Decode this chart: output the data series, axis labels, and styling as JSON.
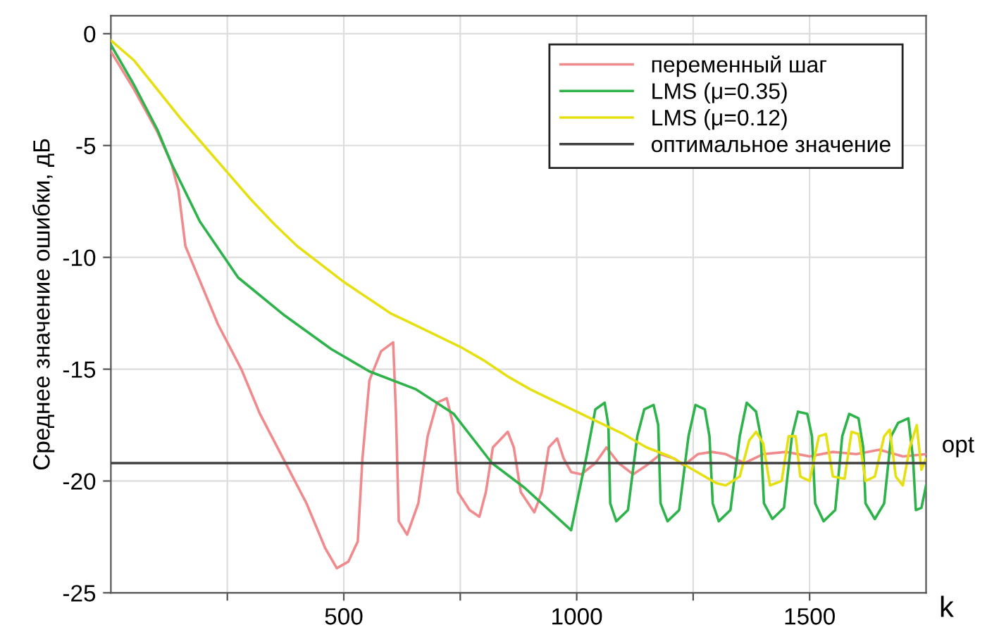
{
  "chart_data": {
    "type": "line",
    "ylabel": "Среднее значение ошибки, дБ",
    "xlabel": "k",
    "xlim": [
      0,
      1750
    ],
    "xticks": [
      {
        "value": 250,
        "label": null
      },
      500,
      {
        "value": 750,
        "label": null
      },
      1000,
      {
        "value": 1250,
        "label": null
      },
      1500
    ],
    "ylim": [
      -25,
      0.8
    ],
    "yticks": [
      -25,
      -20,
      -15,
      -10,
      -5,
      0
    ],
    "grid": true,
    "legend": "top right",
    "line_style": "solid",
    "marker": "none",
    "series": [
      {
        "name": "переменный шаг",
        "color": "#f08a8c",
        "x": [
          0,
          50,
          100,
          130,
          145,
          160,
          190,
          230,
          280,
          320,
          370,
          420,
          460,
          485,
          510,
          530,
          540,
          555,
          580,
          606,
          612,
          618,
          636,
          660,
          680,
          700,
          721,
          735,
          745,
          770,
          791,
          805,
          820,
          852,
          865,
          880,
          909,
          925,
          940,
          958,
          972,
          988,
          1010,
          1040,
          1064,
          1090,
          1121,
          1150,
          1180,
          1210,
          1230,
          1260,
          1290,
          1320,
          1360,
          1400,
          1450,
          1500,
          1550,
          1600,
          1650,
          1700,
          1750
        ],
        "values": [
          -0.8,
          -2.5,
          -4.4,
          -5.8,
          -7,
          -9.5,
          -11,
          -13,
          -15,
          -17,
          -19,
          -21,
          -23,
          -23.9,
          -23.6,
          -22.7,
          -19,
          -15.5,
          -14.2,
          -13.8,
          -17,
          -21.8,
          -22.4,
          -21,
          -18,
          -16.5,
          -16.3,
          -17.5,
          -20.5,
          -21.3,
          -21.6,
          -20.5,
          -18.5,
          -17.8,
          -18.5,
          -20.5,
          -21.4,
          -20.5,
          -18.5,
          -18.1,
          -19,
          -19.6,
          -19.7,
          -19.2,
          -18.5,
          -19.2,
          -19.7,
          -19.3,
          -18.8,
          -19,
          -19.3,
          -18.8,
          -18.7,
          -18.8,
          -19.2,
          -18.8,
          -18.7,
          -18.9,
          -18.7,
          -18.8,
          -18.6,
          -18.9,
          -18.8
        ]
      },
      {
        "name": "LMS (μ=0.35)",
        "color": "#2db34a",
        "x": [
          0,
          50,
          100,
          130,
          191,
          273,
          373,
          473,
          555,
          655,
          736,
          818,
          888,
          988,
          1020,
          1040,
          1060,
          1068,
          1072,
          1085,
          1110,
          1130,
          1145,
          1165,
          1175,
          1180,
          1195,
          1220,
          1240,
          1255,
          1275,
          1285,
          1292,
          1305,
          1330,
          1350,
          1365,
          1385,
          1395,
          1402,
          1420,
          1445,
          1462,
          1475,
          1495,
          1505,
          1512,
          1530,
          1555,
          1570,
          1585,
          1605,
          1615,
          1620,
          1640,
          1660,
          1675,
          1690,
          1712,
          1722,
          1728,
          1740,
          1750
        ],
        "values": [
          -0.5,
          -2.3,
          -4.3,
          -5.8,
          -8.4,
          -10.9,
          -12.6,
          -14.1,
          -15.1,
          -15.9,
          -17,
          -19.2,
          -20.3,
          -22.2,
          -19,
          -16.8,
          -16.5,
          -17.5,
          -21,
          -21.8,
          -21.3,
          -18,
          -16.8,
          -16.6,
          -17.5,
          -21,
          -21.8,
          -21.3,
          -18,
          -16.6,
          -16.8,
          -18,
          -21,
          -21.8,
          -21.3,
          -18,
          -16.5,
          -16.9,
          -18,
          -21,
          -21.7,
          -21.2,
          -18,
          -16.9,
          -17,
          -18,
          -21,
          -21.8,
          -21.3,
          -18,
          -17,
          -17.2,
          -18.5,
          -21,
          -21.7,
          -21,
          -18,
          -17.4,
          -17.2,
          -19,
          -21.3,
          -21.2,
          -20.2
        ]
      },
      {
        "name": "LMS (μ=0.12)",
        "color": "#e6e010",
        "x": [
          0,
          50,
          100,
          150,
          200,
          250,
          300,
          350,
          400,
          450,
          500,
          550,
          600,
          650,
          700,
          750,
          800,
          850,
          900,
          950,
          1000,
          1050,
          1100,
          1150,
          1200,
          1250,
          1300,
          1320,
          1350,
          1370,
          1385,
          1400,
          1415,
          1440,
          1455,
          1470,
          1480,
          1500,
          1520,
          1535,
          1550,
          1575,
          1590,
          1605,
          1620,
          1640,
          1660,
          1672,
          1685,
          1700,
          1715,
          1730,
          1740,
          1750
        ],
        "values": [
          -0.3,
          -1.2,
          -2.5,
          -3.8,
          -5,
          -6.2,
          -7.4,
          -8.5,
          -9.5,
          -10.3,
          -11.1,
          -11.8,
          -12.5,
          -13,
          -13.5,
          -14,
          -14.6,
          -15.3,
          -15.9,
          -16.4,
          -16.9,
          -17.4,
          -17.9,
          -18.5,
          -18.9,
          -19.5,
          -20.1,
          -20.2,
          -19.8,
          -18.2,
          -17.8,
          -18.3,
          -20.2,
          -20,
          -18,
          -18,
          -19.8,
          -20,
          -18,
          -17.9,
          -19.8,
          -19.9,
          -17.8,
          -17.9,
          -20,
          -19.8,
          -18,
          -17.7,
          -19.8,
          -20.2,
          -18.5,
          -17.5,
          -19.5,
          -19
        ]
      },
      {
        "name": "оптимальное значение",
        "color": "#404040",
        "x": [
          0,
          1750
        ],
        "values": [
          -19.2,
          -19.2
        ]
      }
    ],
    "annotations": [
      {
        "text": "opt",
        "x": 1750,
        "y": -19.2
      }
    ]
  }
}
